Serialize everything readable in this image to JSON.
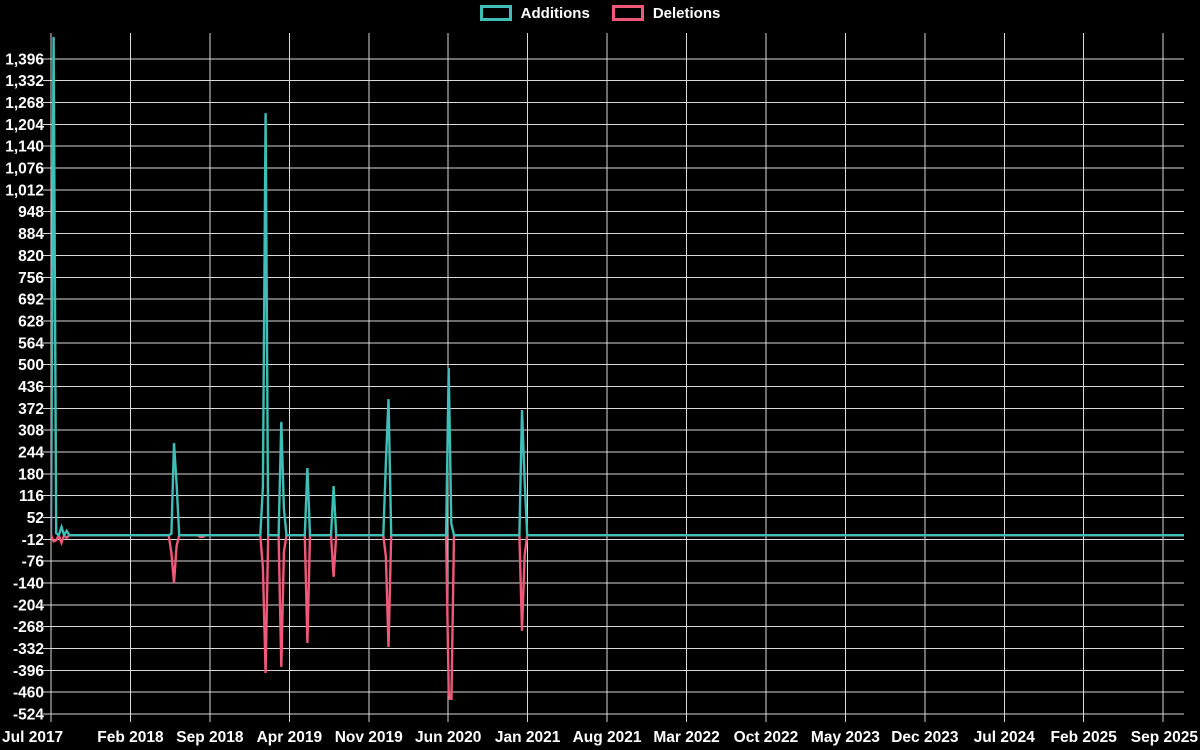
{
  "page": {
    "background": "#000000",
    "text_color": "#ffffff",
    "grid_color": "#d9d9d9"
  },
  "chart_data": {
    "type": "line",
    "title": "",
    "legend_position": "top",
    "grid": true,
    "x_axis": {
      "tick_labels": [
        "Jul 2017",
        "Feb 2018",
        "Sep 2018",
        "Apr 2019",
        "Nov 2019",
        "Jun 2020",
        "Jan 2021",
        "Aug 2021",
        "Mar 2022",
        "Oct 2022",
        "May 2023",
        "Dec 2023",
        "Jul 2024",
        "Feb 2025",
        "Sep 2025"
      ],
      "weeks_between_ticks": 30.36,
      "total_weeks": 434
    },
    "y_axis": {
      "tick_step": 64,
      "ticks": [
        1396,
        1332,
        1268,
        1204,
        1140,
        1076,
        1012,
        948,
        884,
        820,
        756,
        692,
        628,
        564,
        500,
        436,
        372,
        308,
        244,
        180,
        116,
        52,
        -12,
        -76,
        -140,
        -204,
        -268,
        -332,
        -396,
        -460,
        -524
      ],
      "ylim": [
        -541,
        1472
      ]
    },
    "series": [
      {
        "name": "Additions",
        "color": "#3fbdb7",
        "baseline": 0,
        "events": [
          [
            1,
            1460
          ],
          [
            2,
            6
          ],
          [
            4,
            24
          ],
          [
            6,
            13
          ],
          [
            46,
            4
          ],
          [
            47,
            270
          ],
          [
            48,
            150
          ],
          [
            81,
            142
          ],
          [
            82,
            1237
          ],
          [
            88,
            332
          ],
          [
            89,
            77
          ],
          [
            98,
            197
          ],
          [
            108,
            144
          ],
          [
            128,
            214
          ],
          [
            129,
            399
          ],
          [
            152,
            490
          ],
          [
            153,
            34
          ],
          [
            180,
            367
          ],
          [
            181,
            162
          ]
        ]
      },
      {
        "name": "Deletions",
        "color": "#ee5879",
        "baseline": 0,
        "events": [
          [
            1,
            -18
          ],
          [
            2,
            -15
          ],
          [
            4,
            -22
          ],
          [
            6,
            -8
          ],
          [
            46,
            -52
          ],
          [
            47,
            -140
          ],
          [
            48,
            -32
          ],
          [
            57,
            -5
          ],
          [
            58,
            -5
          ],
          [
            81,
            -96
          ],
          [
            82,
            -404
          ],
          [
            88,
            -386
          ],
          [
            89,
            -49
          ],
          [
            98,
            -316
          ],
          [
            108,
            -122
          ],
          [
            128,
            -64
          ],
          [
            129,
            -328
          ],
          [
            152,
            -460
          ],
          [
            153,
            -503
          ],
          [
            180,
            -280
          ],
          [
            181,
            -60
          ]
        ]
      }
    ]
  }
}
